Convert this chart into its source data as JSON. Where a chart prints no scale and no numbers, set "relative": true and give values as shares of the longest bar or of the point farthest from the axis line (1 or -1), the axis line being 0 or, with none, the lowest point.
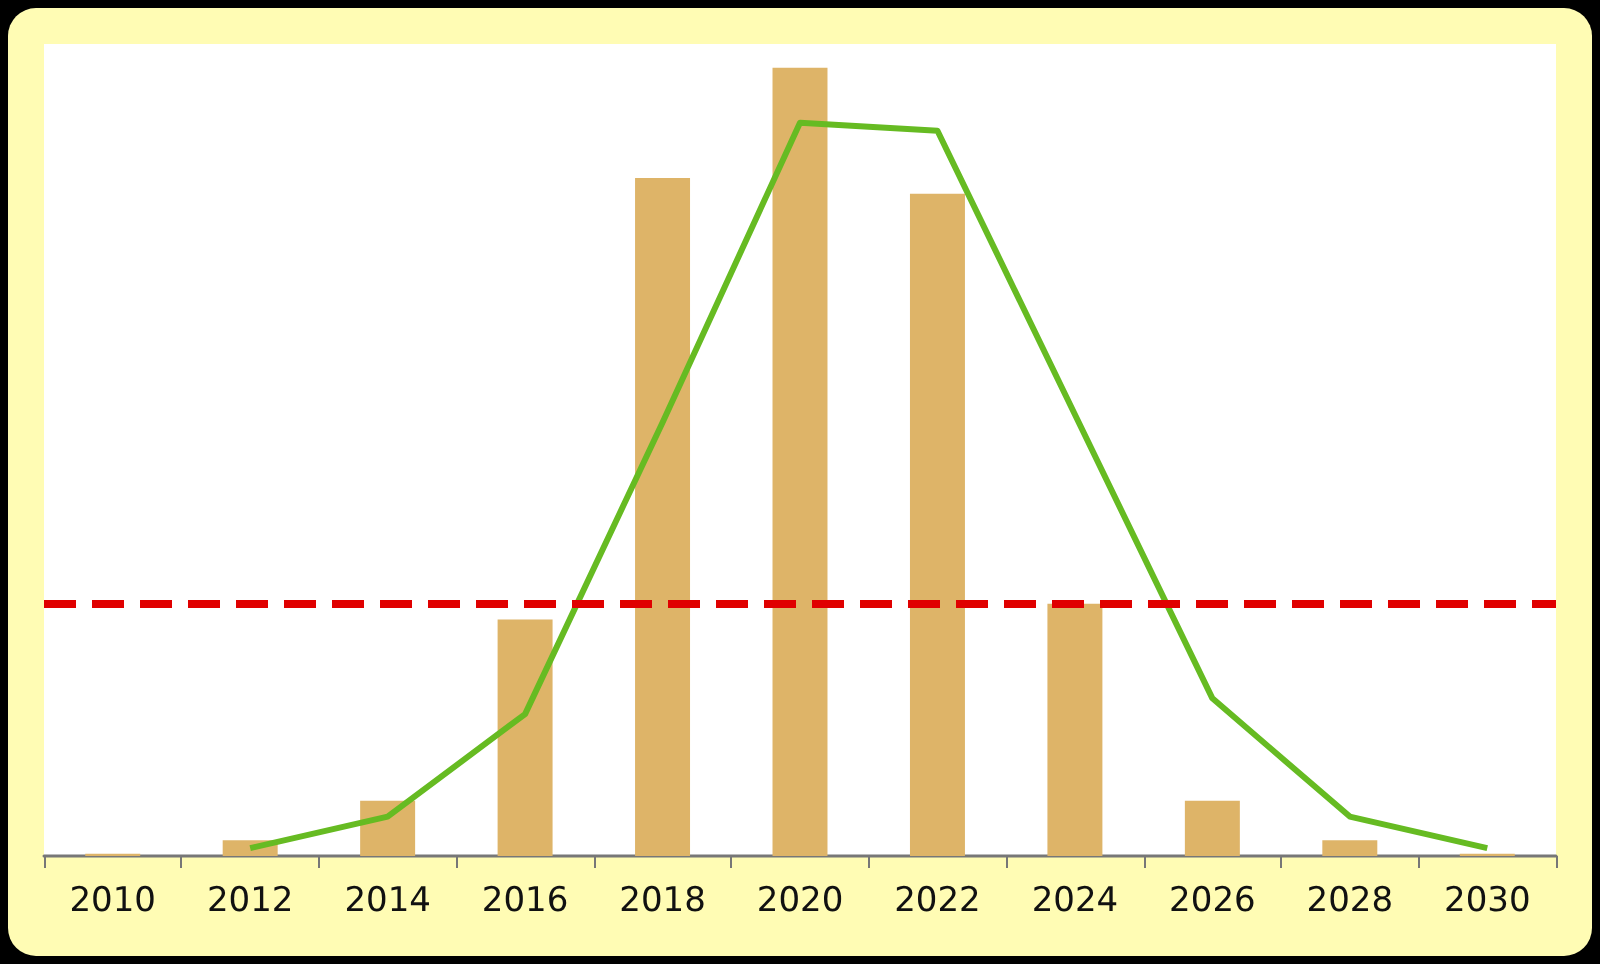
{
  "chart_data": {
    "type": "bar",
    "relative": true,
    "categories": [
      "2010",
      "2012",
      "2014",
      "2016",
      "2018",
      "2020",
      "2022",
      "2024",
      "2026",
      "2028",
      "2030"
    ],
    "series": [
      {
        "color": "#deb468",
        "values": [
          0.003,
          0.02,
          0.07,
          0.3,
          0.86,
          1,
          0.84,
          0.32,
          0.07,
          0.02,
          0.003
        ]
      },
      {
        "type": "line",
        "color": "#66bb22",
        "values": [
          null,
          0.01,
          0.05,
          0.18,
          0.55,
          0.93,
          0.92,
          0.56,
          0.2,
          0.05,
          0.01
        ]
      }
    ],
    "ref_lines": [
      {
        "axis": "y",
        "value": 0.32,
        "color": "#e00000",
        "line_style": "dashed"
      }
    ],
    "marker": "none",
    "grid": false
  }
}
